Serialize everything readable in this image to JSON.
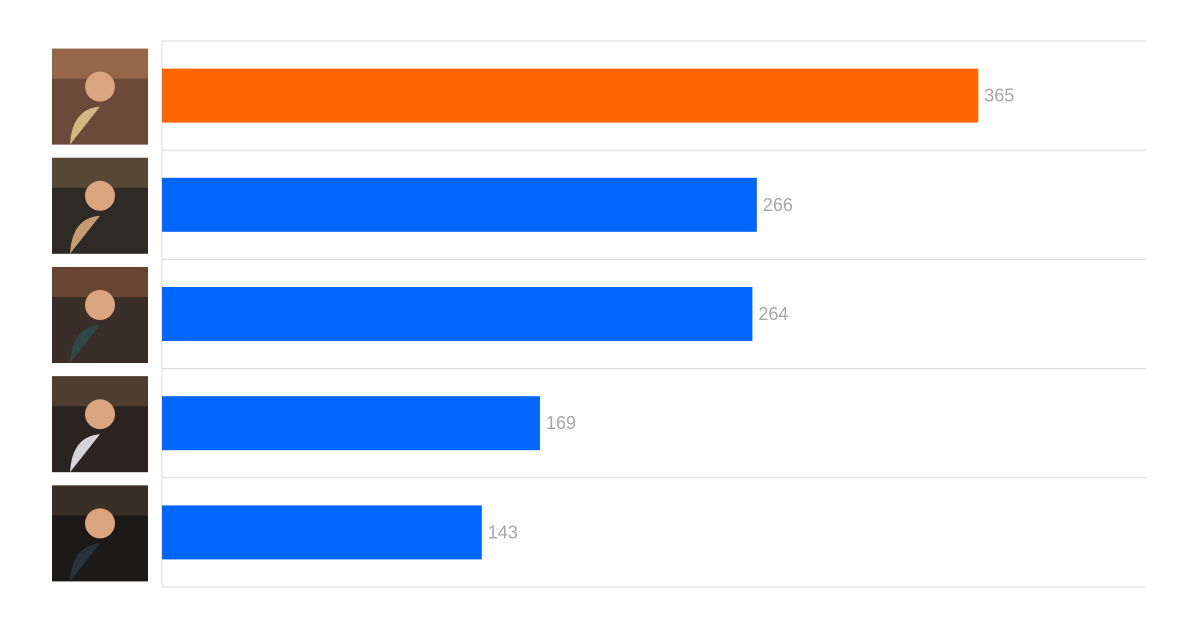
{
  "chart_data": {
    "type": "bar",
    "orientation": "horizontal",
    "categories": [
      "",
      "",
      "",
      "",
      ""
    ],
    "values": [
      365,
      266,
      264,
      169,
      143
    ],
    "value_labels": [
      "365",
      "266",
      "264",
      "169",
      "143"
    ],
    "xlim": [
      0,
      400
    ],
    "grid": "horizontal separators",
    "colors": [
      "#ff6600",
      "#0066ff",
      "#0066ff",
      "#0066ff",
      "#0066ff"
    ],
    "category_images": [
      "photo-person-1",
      "photo-person-2",
      "photo-person-3",
      "photo-person-4",
      "photo-persons-5"
    ]
  }
}
